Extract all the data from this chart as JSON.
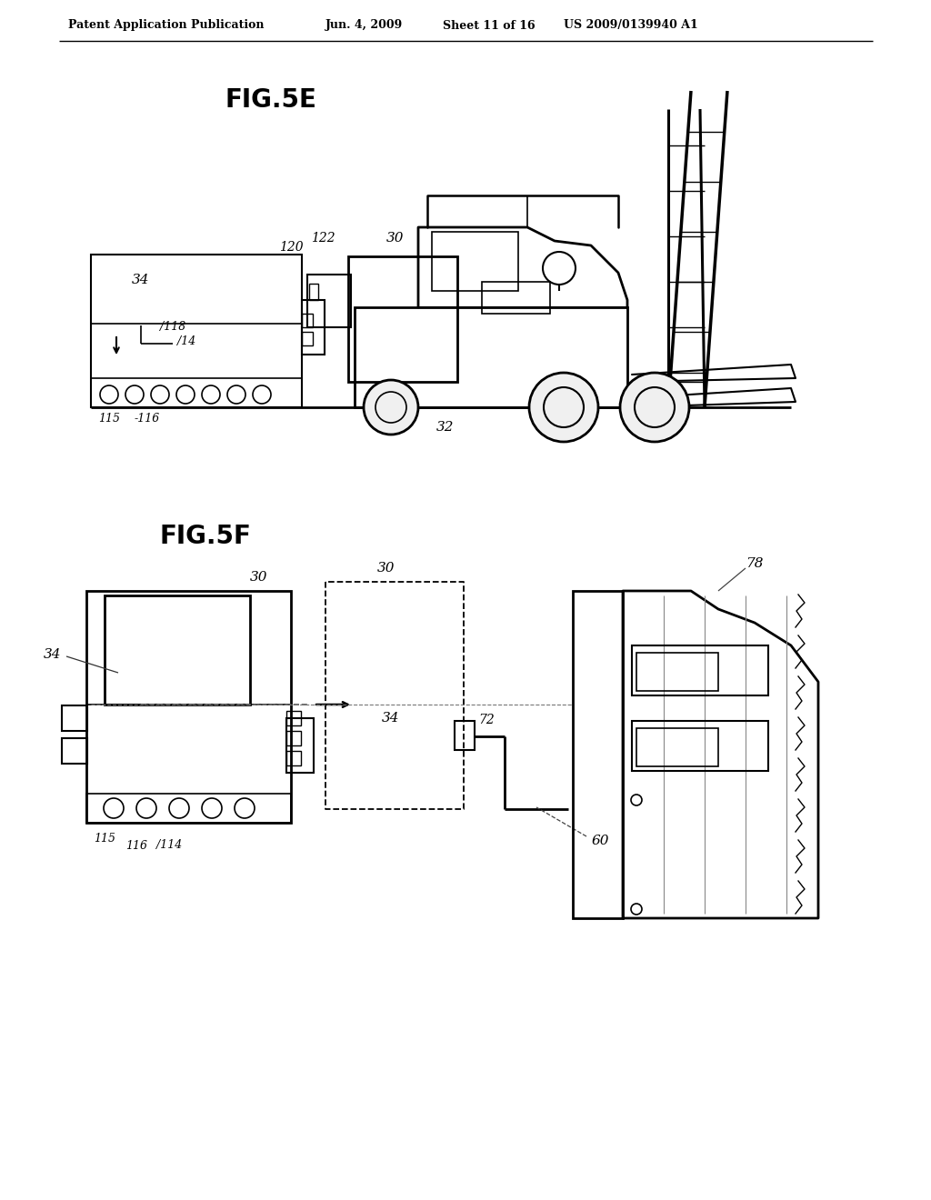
{
  "background_color": "#ffffff",
  "page_width": 10.24,
  "page_height": 13.2,
  "header_text": "Patent Application Publication",
  "header_date": "Jun. 4, 2009",
  "header_sheet": "Sheet 11 of 16",
  "header_patent": "US 2009/0139940 A1",
  "fig5e_label": "FIG.5E",
  "fig5f_label": "FIG.5F",
  "line_color": "#000000",
  "text_color": "#000000"
}
